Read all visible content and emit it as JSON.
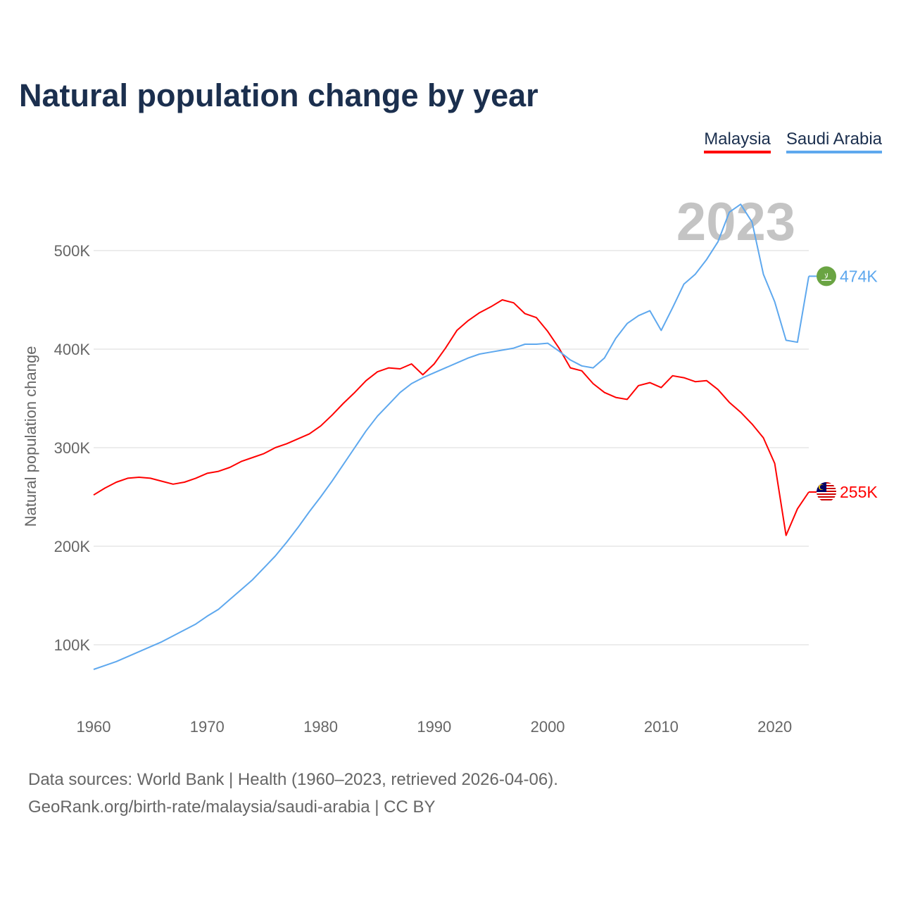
{
  "chart_data": {
    "type": "line",
    "title": "Natural population change by year",
    "ylabel": "Natural population change",
    "xlabel": "",
    "ylim": [
      0,
      560000
    ],
    "xlim": [
      1960,
      2023
    ],
    "yticks": [
      100000,
      200000,
      300000,
      400000,
      500000
    ],
    "ytick_labels": [
      "100K",
      "200K",
      "300K",
      "400K",
      "500K"
    ],
    "xticks": [
      1960,
      1970,
      1980,
      1990,
      2000,
      2010,
      2020
    ],
    "xtick_labels": [
      "1960",
      "1970",
      "1980",
      "1990",
      "2000",
      "2010",
      "2020"
    ],
    "grid": true,
    "legend_position": "top-right",
    "year_watermark": "2023",
    "x_start": 1960,
    "series": [
      {
        "name": "Malaysia",
        "color": "#ff0000",
        "end_label": "255K",
        "flag": "malaysia-flag",
        "values_k": [
          252,
          259,
          265,
          269,
          270,
          269,
          266,
          263,
          265,
          269,
          274,
          276,
          280,
          286,
          290,
          294,
          300,
          304,
          309,
          314,
          322,
          333,
          345,
          356,
          368,
          377,
          381,
          380,
          385,
          374,
          385,
          401,
          419,
          429,
          437,
          443,
          450,
          447,
          436,
          432,
          418,
          401,
          381,
          378,
          365,
          356,
          351,
          349,
          363,
          366,
          361,
          373,
          371,
          367,
          368,
          359,
          346,
          336,
          324,
          310,
          284,
          211,
          238,
          255
        ]
      },
      {
        "name": "Saudi Arabia",
        "color": "#5ea8ee",
        "end_label": "474K",
        "flag": "saudi-arabia-flag",
        "values_k": [
          75,
          79,
          83,
          88,
          93,
          98,
          103,
          109,
          115,
          121,
          129,
          136,
          146,
          156,
          166,
          178,
          190,
          204,
          219,
          235,
          250,
          266,
          283,
          300,
          317,
          332,
          344,
          356,
          365,
          371,
          376,
          381,
          386,
          391,
          395,
          397,
          399,
          401,
          405,
          405,
          406,
          398,
          389,
          383,
          381,
          391,
          411,
          426,
          434,
          439,
          419,
          442,
          466,
          476,
          491,
          509,
          539,
          547,
          529,
          476,
          448,
          409,
          407,
          474
        ]
      }
    ]
  },
  "footer": {
    "line1": "Data sources: World Bank | Health (1960–2023, retrieved 2026-04-06).",
    "line2": "GeoRank.org/birth-rate/malaysia/saudi-arabia | CC BY"
  }
}
